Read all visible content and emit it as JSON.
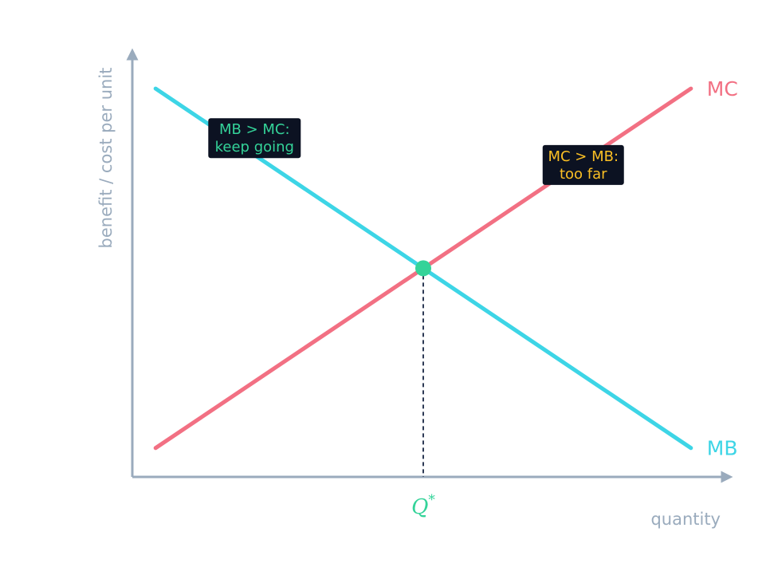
{
  "chart_data": {
    "type": "line",
    "title": "",
    "xlabel": "quantity",
    "ylabel": "benefit / cost per unit",
    "xlim": [
      0,
      10
    ],
    "ylim": [
      0,
      10
    ],
    "grid": false,
    "series": [
      {
        "name": "MB",
        "color": "#3dd5e6",
        "x": [
          0.4,
          9.6
        ],
        "y": [
          9.4,
          0.7
        ]
      },
      {
        "name": "MC",
        "color": "#f27083",
        "x": [
          0.4,
          9.6
        ],
        "y": [
          0.7,
          9.4
        ]
      }
    ],
    "equilibrium": {
      "x": 5.0,
      "y": 5.05,
      "tick_label": "Q",
      "tick_superscript": "*",
      "color": "#34d399"
    },
    "annotations": [
      {
        "lines": [
          "MB > MC:",
          "keep going"
        ],
        "x": 2.1,
        "y": 8.2,
        "color": "#34d399",
        "box_color": "#0c1222"
      },
      {
        "lines": [
          "MC > MB:",
          "too far"
        ],
        "x": 7.75,
        "y": 7.55,
        "color": "#fbbf24",
        "box_color": "#0c1222"
      }
    ],
    "axis_color": "#9aabbd"
  }
}
